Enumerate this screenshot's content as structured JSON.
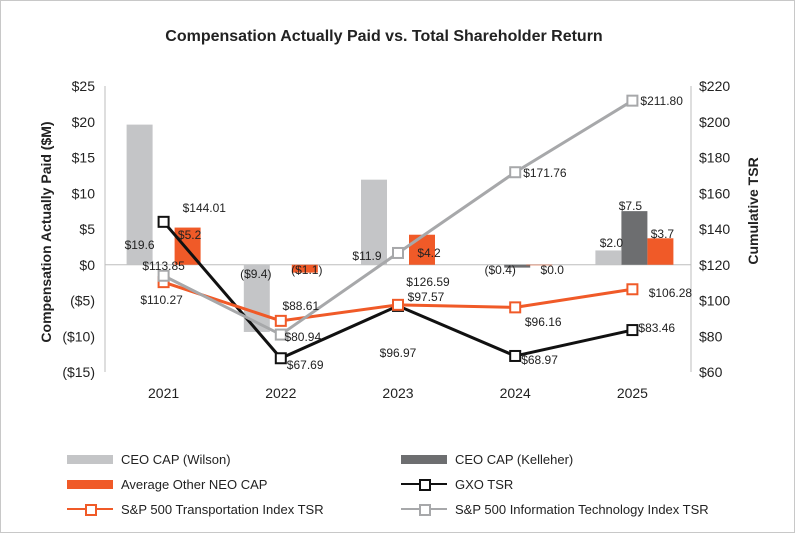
{
  "chart_data": {
    "type": "bar",
    "title": "Compensation Actually Paid vs. Total Shareholder Return",
    "categories": [
      "2021",
      "2022",
      "2023",
      "2024",
      "2025"
    ],
    "y_left": {
      "label": "Compensation Actually Paid ($M)",
      "range": [
        -15,
        25
      ],
      "ticks": [
        25,
        20,
        15,
        10,
        5,
        0,
        -5,
        -10,
        -15
      ],
      "tick_labels": [
        "$25",
        "$20",
        "$15",
        "$10",
        "$5",
        "$0",
        "($5)",
        "($10)",
        "($15)"
      ]
    },
    "y_right": {
      "label": "Cumulative TSR",
      "range": [
        60,
        220
      ],
      "ticks": [
        220,
        200,
        180,
        160,
        140,
        120,
        100,
        80,
        60
      ],
      "tick_labels": [
        "$220",
        "$200",
        "$180",
        "$160",
        "$140",
        "$120",
        "$100",
        "$80",
        "$60"
      ]
    },
    "bar_series": [
      {
        "name": "CEO CAP (Wilson)",
        "color": "#c4c5c7",
        "values": [
          19.6,
          -9.4,
          11.9,
          null,
          null
        ],
        "labels": [
          "$19.6",
          "($9.4)",
          "$11.9",
          "",
          ""
        ]
      },
      {
        "name": "CEO CAP (Kelleher)",
        "color": "#6d6e70",
        "values": [
          null,
          null,
          null,
          -0.4,
          7.5
        ],
        "labels": [
          "",
          "",
          "",
          "($0.4)",
          "$7.5"
        ]
      },
      {
        "name": "Average Other NEO CAP",
        "color": "#f05a28",
        "values": [
          5.2,
          -1.1,
          4.2,
          0.0,
          3.7
        ],
        "labels": [
          "$5.2",
          "($1.1)",
          "$4.2",
          "$0.0",
          "$3.7"
        ]
      }
    ],
    "extra_bar_labels": [
      {
        "category": "2025",
        "text": "$2.0",
        "series": "CEO CAP (Wilson)",
        "value": 2.0
      }
    ],
    "line_series": [
      {
        "name": "GXO TSR",
        "color": "#111111",
        "axis": "right",
        "values": [
          144.01,
          67.69,
          96.97,
          68.97,
          83.46
        ],
        "labels": [
          "$144.01",
          "$67.69",
          "$96.97",
          "$68.97",
          "$83.46"
        ]
      },
      {
        "name": "S&P 500 Transportation Index TSR",
        "color": "#f05a28",
        "axis": "right",
        "values": [
          110.27,
          88.61,
          97.57,
          96.16,
          106.28
        ],
        "labels": [
          "$110.27",
          "$88.61",
          "$97.57",
          "$96.16",
          "$106.28"
        ]
      },
      {
        "name": "S&P 500 Information Technology Index TSR",
        "color": "#a7a8aa",
        "axis": "right",
        "values": [
          113.85,
          80.94,
          126.59,
          171.76,
          211.8
        ],
        "labels": [
          "$113.85",
          "$80.94",
          "$126.59",
          "$171.76",
          "$211.80"
        ]
      }
    ],
    "grid": false,
    "legend_position": "bottom"
  },
  "legend": [
    {
      "label": "CEO CAP (Wilson)",
      "kind": "rect",
      "color": "#c4c5c7"
    },
    {
      "label": "CEO CAP (Kelleher)",
      "kind": "rect",
      "color": "#6d6e70"
    },
    {
      "label": "Average Other NEO CAP",
      "kind": "rect",
      "color": "#f05a28"
    },
    {
      "label": "GXO TSR",
      "kind": "line",
      "color": "#111111"
    },
    {
      "label": "S&P 500 Transportation Index TSR",
      "kind": "line",
      "color": "#f05a28"
    },
    {
      "label": "S&P 500 Information Technology Index TSR",
      "kind": "line",
      "color": "#a7a8aa"
    }
  ]
}
